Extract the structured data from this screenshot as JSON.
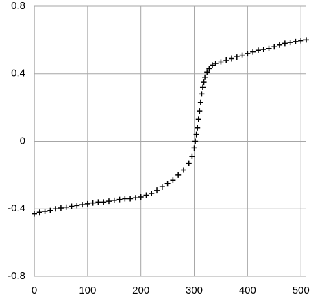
{
  "chart_data": {
    "type": "scatter",
    "color": "#000000",
    "grid": true,
    "x": [
      0,
      10,
      20,
      30,
      40,
      50,
      60,
      70,
      80,
      90,
      100,
      110,
      120,
      130,
      140,
      150,
      160,
      170,
      180,
      190,
      200,
      210,
      220,
      230,
      240,
      250,
      260,
      270,
      280,
      290,
      296,
      300,
      302,
      304,
      306,
      308,
      310,
      312,
      314,
      316,
      318,
      320,
      324,
      328,
      334,
      340,
      350,
      360,
      370,
      380,
      390,
      400,
      410,
      420,
      430,
      440,
      450,
      460,
      470,
      480,
      490,
      500,
      510
    ],
    "values": [
      -0.43,
      -0.42,
      -0.415,
      -0.41,
      -0.4,
      -0.395,
      -0.39,
      -0.385,
      -0.38,
      -0.375,
      -0.37,
      -0.365,
      -0.36,
      -0.36,
      -0.355,
      -0.35,
      -0.345,
      -0.34,
      -0.34,
      -0.335,
      -0.33,
      -0.32,
      -0.31,
      -0.29,
      -0.27,
      -0.25,
      -0.23,
      -0.2,
      -0.17,
      -0.13,
      -0.09,
      -0.04,
      0.0,
      0.04,
      0.08,
      0.13,
      0.18,
      0.23,
      0.28,
      0.32,
      0.35,
      0.38,
      0.41,
      0.43,
      0.45,
      0.46,
      0.47,
      0.48,
      0.49,
      0.5,
      0.51,
      0.52,
      0.53,
      0.54,
      0.545,
      0.55,
      0.56,
      0.57,
      0.58,
      0.585,
      0.59,
      0.595,
      0.6
    ],
    "xlim": [
      0,
      510
    ],
    "xticks": [
      0,
      100,
      200,
      300,
      400,
      500
    ],
    "ylim": [
      -0.8,
      0.8
    ],
    "yticks": [
      -0.8,
      -0.4,
      0,
      0.4,
      0.8
    ]
  }
}
